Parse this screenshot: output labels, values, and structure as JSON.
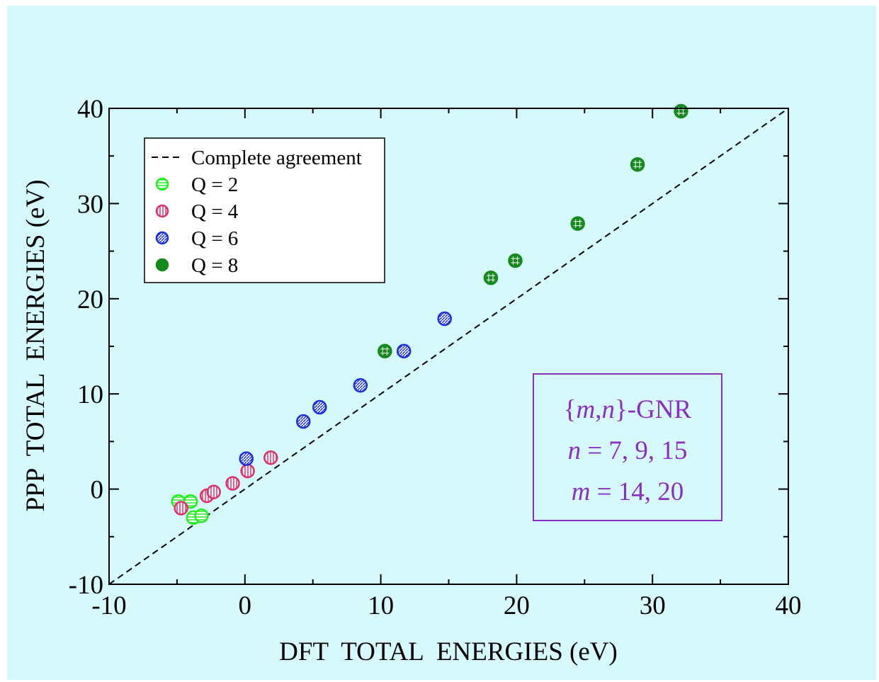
{
  "colors": {
    "page_background": "#ffffff",
    "plot_background": "#d6fafc",
    "axis": "#000000",
    "agreement_line": "#000000",
    "q2": "#22ee22",
    "q4": "#e0306a",
    "q6": "#1a2fe0",
    "q8": "#14891e",
    "annotation": "#8a2ec8"
  },
  "chart_data": {
    "type": "scatter",
    "title": "",
    "xlabel": "DFT  TOTAL  ENERGIES (eV)",
    "ylabel": "PPP  TOTAL  ENERGIES (eV)",
    "xlim": [
      -10,
      40
    ],
    "ylim": [
      -10,
      40
    ],
    "x_ticks": [
      -10,
      0,
      10,
      20,
      30,
      40
    ],
    "y_ticks": [
      -10,
      0,
      10,
      20,
      30,
      40
    ],
    "x_tick_labels": [
      "-10",
      "0",
      "10",
      "20",
      "30",
      "40"
    ],
    "y_tick_labels": [
      "-10",
      "0",
      "10",
      "20",
      "30",
      "40"
    ],
    "minor_ticks_per_interval": 1,
    "grid": false,
    "legend_position": "top-left",
    "reference_line": {
      "name": "Complete agreement",
      "style": "dashed",
      "points": [
        [
          -10,
          -10
        ],
        [
          40,
          40
        ]
      ]
    },
    "series": [
      {
        "name": "Q = 2",
        "marker": "circle-horizontal-hatch",
        "color_key": "q2",
        "points": [
          [
            -4.9,
            -1.3
          ],
          [
            -4.0,
            -1.3
          ],
          [
            -3.8,
            -3.0
          ],
          [
            -3.2,
            -2.8
          ]
        ]
      },
      {
        "name": "Q = 4",
        "marker": "circle-vertical-hatch",
        "color_key": "q4",
        "points": [
          [
            -4.7,
            -2.0
          ],
          [
            -2.8,
            -0.7
          ],
          [
            -2.3,
            -0.3
          ],
          [
            -0.9,
            0.6
          ],
          [
            0.2,
            1.9
          ],
          [
            1.9,
            3.3
          ]
        ]
      },
      {
        "name": "Q = 6",
        "marker": "circle-diagonal-hatch",
        "color_key": "q6",
        "points": [
          [
            0.1,
            3.2
          ],
          [
            4.3,
            7.1
          ],
          [
            5.5,
            8.6
          ],
          [
            8.5,
            10.9
          ],
          [
            11.7,
            14.5
          ],
          [
            14.7,
            17.9
          ]
        ]
      },
      {
        "name": "Q = 8",
        "marker": "circle-cross-hatch",
        "color_key": "q8",
        "points": [
          [
            10.3,
            14.5
          ],
          [
            18.1,
            22.2
          ],
          [
            19.9,
            24.0
          ],
          [
            24.5,
            27.9
          ],
          [
            28.9,
            34.1
          ],
          [
            32.1,
            39.7
          ]
        ]
      }
    ],
    "annotation": {
      "line1": {
        "open": "{",
        "m": "m",
        "comma": ",",
        "n": "n",
        "close": "}-GNR"
      },
      "line2": {
        "var": "n",
        "rest": " = 7, 9, 15"
      },
      "line3": {
        "var": "m",
        "rest": " = 14, 20"
      },
      "position": "bottom-right"
    }
  }
}
